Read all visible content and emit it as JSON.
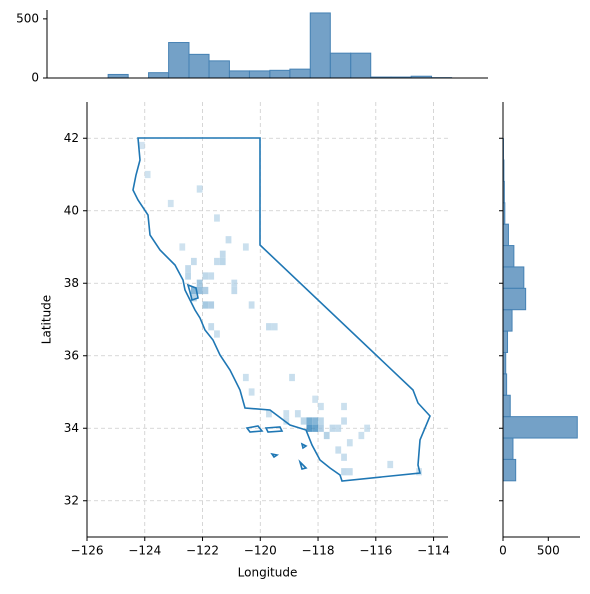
{
  "chart_data": [
    {
      "type": "hist2d",
      "xlabel": "Longitude",
      "ylabel": "Latitude",
      "color": "#1f77b4",
      "grid": true,
      "xlim": [
        -126,
        -113.5
      ],
      "ylim": [
        31,
        43
      ],
      "xticks": [
        {
          "value": -126,
          "label": "−126"
        },
        {
          "value": -124,
          "label": "−124"
        },
        {
          "value": -122,
          "label": "−122"
        },
        {
          "value": -120,
          "label": "−120"
        },
        {
          "value": -118,
          "label": "−118"
        },
        {
          "value": -116,
          "label": "−116"
        },
        {
          "value": -114,
          "label": "−114"
        }
      ],
      "yticks": [
        32,
        34,
        36,
        38,
        40,
        42
      ],
      "cells": [
        [
          -118.4,
          33.9,
          40
        ],
        [
          -118.2,
          33.9,
          35
        ],
        [
          -118.4,
          34.1,
          30
        ],
        [
          -118.2,
          34.1,
          25
        ],
        [
          -118.0,
          33.9,
          12
        ],
        [
          -117.8,
          33.7,
          10
        ],
        [
          -118.6,
          34.1,
          8
        ],
        [
          -118.0,
          34.1,
          8
        ],
        [
          -117.6,
          33.9,
          6
        ],
        [
          -117.4,
          33.9,
          5
        ],
        [
          -117.2,
          32.7,
          6
        ],
        [
          -117.0,
          32.7,
          5
        ],
        [
          -117.2,
          33.1,
          4
        ],
        [
          -117.4,
          33.3,
          4
        ],
        [
          -118.8,
          34.3,
          4
        ],
        [
          -119.2,
          34.3,
          3
        ],
        [
          -119.8,
          34.3,
          3
        ],
        [
          -117.2,
          34.1,
          4
        ],
        [
          -116.6,
          33.7,
          3
        ],
        [
          -117.0,
          33.5,
          3
        ],
        [
          -118.0,
          34.5,
          3
        ],
        [
          -117.2,
          34.5,
          3
        ],
        [
          -118.2,
          34.7,
          2
        ],
        [
          -119.0,
          35.3,
          4
        ],
        [
          -119.8,
          36.7,
          5
        ],
        [
          -119.6,
          36.7,
          4
        ],
        [
          -120.4,
          37.3,
          4
        ],
        [
          -121.0,
          37.7,
          6
        ],
        [
          -121.4,
          38.5,
          8
        ],
        [
          -121.4,
          38.7,
          6
        ],
        [
          -121.6,
          38.5,
          5
        ],
        [
          -122.4,
          37.7,
          25
        ],
        [
          -122.2,
          37.7,
          20
        ],
        [
          -122.0,
          37.7,
          12
        ],
        [
          -122.2,
          37.9,
          15
        ],
        [
          -122.4,
          37.5,
          10
        ],
        [
          -122.0,
          37.3,
          15
        ],
        [
          -121.8,
          37.3,
          12
        ],
        [
          -122.6,
          38.1,
          8
        ],
        [
          -122.6,
          38.3,
          6
        ],
        [
          -122.4,
          38.5,
          5
        ],
        [
          -122.0,
          38.1,
          7
        ],
        [
          -121.8,
          38.1,
          5
        ],
        [
          -121.2,
          39.1,
          4
        ],
        [
          -121.6,
          39.7,
          3
        ],
        [
          -122.2,
          40.5,
          3
        ],
        [
          -123.2,
          40.1,
          2
        ],
        [
          -124.0,
          40.9,
          2
        ],
        [
          -124.2,
          41.7,
          1
        ],
        [
          -120.6,
          38.9,
          3
        ],
        [
          -122.8,
          38.9,
          2
        ],
        [
          -121.8,
          36.7,
          5
        ],
        [
          -121.6,
          36.5,
          3
        ],
        [
          -120.6,
          35.3,
          3
        ],
        [
          -120.4,
          34.9,
          3
        ],
        [
          -119.2,
          34.1,
          3
        ],
        [
          -115.6,
          32.9,
          3
        ],
        [
          -114.6,
          32.7,
          2
        ],
        [
          -116.4,
          33.9,
          3
        ],
        [
          -121.0,
          37.9,
          5
        ]
      ]
    },
    {
      "type": "hist",
      "color": "#4682b4",
      "xlim": [
        -126.2,
        -113.0
      ],
      "ylim": [
        0,
        575
      ],
      "yticks": [
        0,
        500
      ],
      "bins": [
        -124.37,
        -123.77,
        -123.16,
        -122.56,
        -121.95,
        -121.35,
        -120.74,
        -120.14,
        -119.53,
        -118.93,
        -118.32,
        -117.72,
        -117.11,
        -116.51,
        -115.9,
        -115.3,
        -114.69,
        -114.09
      ],
      "counts": [
        30,
        0,
        45,
        300,
        200,
        145,
        60,
        60,
        65,
        75,
        550,
        210,
        210,
        8,
        8,
        15,
        3
      ]
    },
    {
      "type": "hist-horizontal",
      "color": "#4682b4",
      "xlim": [
        0,
        850
      ],
      "xticks": [
        0,
        500
      ],
      "ylim": [
        31,
        43
      ],
      "yticks": [
        32,
        34,
        36,
        38,
        40,
        42
      ],
      "bins": [
        32.55,
        33.14,
        33.73,
        34.32,
        34.91,
        35.5,
        36.09,
        36.68,
        37.27,
        37.86,
        38.45,
        39.04,
        39.63,
        40.22,
        40.81,
        41.4,
        41.99
      ],
      "counts": [
        140,
        110,
        820,
        80,
        40,
        30,
        50,
        100,
        250,
        230,
        120,
        60,
        20,
        15,
        10,
        5
      ]
    }
  ]
}
